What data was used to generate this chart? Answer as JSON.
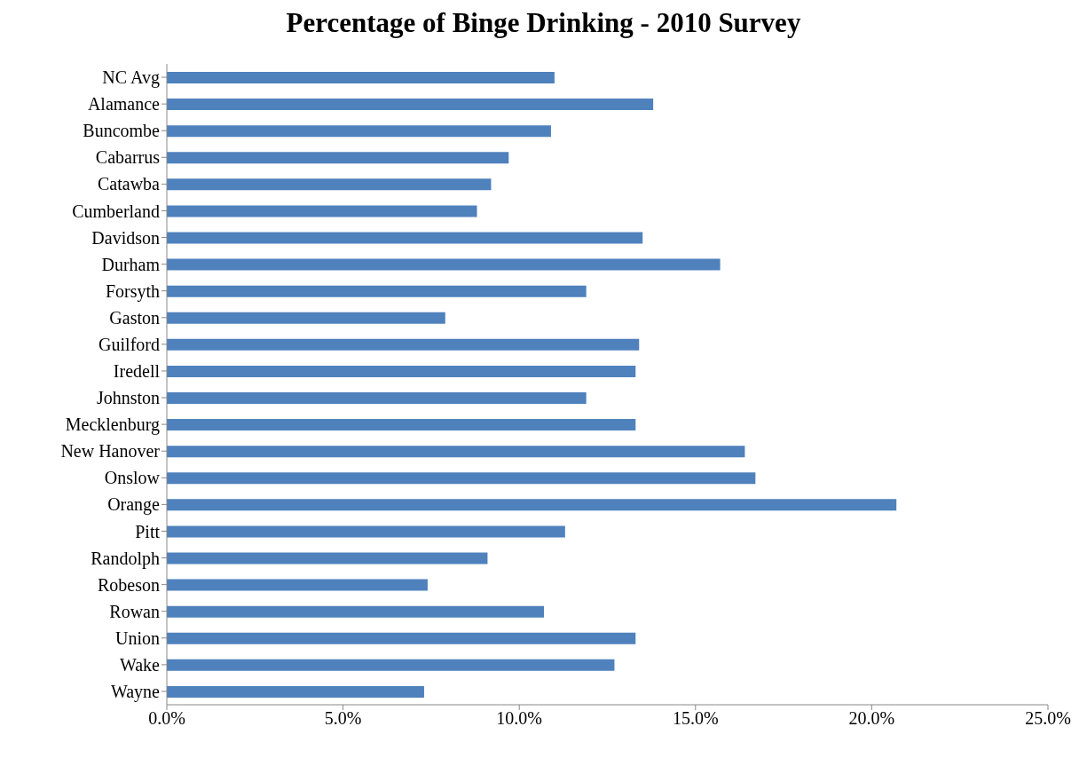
{
  "chart_data": {
    "type": "bar",
    "orientation": "horizontal",
    "title": "Percentage of Binge Drinking - 2010 Survey",
    "categories": [
      "NC Avg",
      "Alamance",
      "Buncombe",
      "Cabarrus",
      "Catawba",
      "Cumberland",
      "Davidson",
      "Durham",
      "Forsyth",
      "Gaston",
      "Guilford",
      "Iredell",
      "Johnston",
      "Mecklenburg",
      "New Hanover",
      "Onslow",
      "Orange",
      "Pitt",
      "Randolph",
      "Robeson",
      "Rowan",
      "Union",
      "Wake",
      "Wayne"
    ],
    "values": [
      11.0,
      13.8,
      10.9,
      9.7,
      9.2,
      8.8,
      13.5,
      15.7,
      11.9,
      7.9,
      13.4,
      13.3,
      11.9,
      13.3,
      16.4,
      16.7,
      20.7,
      11.3,
      9.1,
      7.4,
      10.7,
      13.3,
      12.7,
      7.3
    ],
    "color": "#4f81bd",
    "xlim": [
      0,
      25
    ],
    "xticks": [
      {
        "value": 0,
        "label": "0.0%"
      },
      {
        "value": 5,
        "label": "5.0%"
      },
      {
        "value": 10,
        "label": "10.0%"
      },
      {
        "value": 15,
        "label": "15.0%"
      },
      {
        "value": 20,
        "label": "20.0%"
      },
      {
        "value": 25,
        "label": "25.0%"
      }
    ],
    "grid": false,
    "legend": false
  }
}
